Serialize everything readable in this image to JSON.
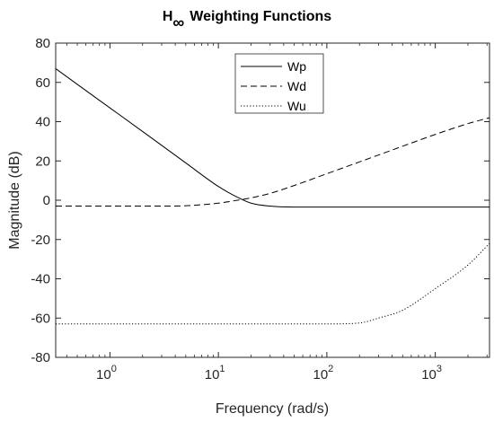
{
  "chart_data": {
    "type": "line",
    "title_main": "H",
    "title_subscript": "∞",
    "title_rest": "Weighting Functions",
    "xlabel": "Frequency (rad/s)",
    "ylabel": "Magnitude (dB)",
    "x_scale": "log",
    "xlim": [
      0.316,
      3162
    ],
    "ylim": [
      -80,
      80
    ],
    "x_ticks": [
      1,
      10,
      100,
      1000
    ],
    "x_tick_labels": [
      {
        "base": "10",
        "exp": "0"
      },
      {
        "base": "10",
        "exp": "1"
      },
      {
        "base": "10",
        "exp": "2"
      },
      {
        "base": "10",
        "exp": "3"
      }
    ],
    "y_ticks": [
      -80,
      -60,
      -40,
      -20,
      0,
      20,
      40,
      60,
      80
    ],
    "y_tick_labels": [
      "-80",
      "-60",
      "-40",
      "-20",
      "0",
      "20",
      "40",
      "60",
      "80"
    ],
    "grid": false,
    "legend_position": "top-center",
    "series": [
      {
        "name": "Wp",
        "style": "solid",
        "color": "#000000",
        "x": [
          0.316,
          0.5,
          1,
          2,
          5,
          10,
          15,
          20,
          30,
          50,
          100,
          1000,
          3162
        ],
        "y": [
          67,
          59,
          47,
          35,
          19,
          7,
          1.5,
          -1.5,
          -3,
          -3.5,
          -3.5,
          -3.5,
          -3.5
        ]
      },
      {
        "name": "Wd",
        "style": "dashed",
        "color": "#000000",
        "x": [
          0.316,
          1,
          3,
          5,
          10,
          15,
          20,
          30,
          50,
          100,
          200,
          500,
          1000,
          2000,
          3162
        ],
        "y": [
          -3,
          -3,
          -3,
          -2.8,
          -1.5,
          0,
          1.2,
          3.5,
          7.5,
          13.5,
          19.5,
          27.5,
          33.5,
          39,
          42
        ]
      },
      {
        "name": "Wu",
        "style": "dotted",
        "color": "#000000",
        "x": [
          0.316,
          10,
          100,
          200,
          300,
          500,
          1000,
          2000,
          3162
        ],
        "y": [
          -63,
          -63,
          -63,
          -62.5,
          -60,
          -56,
          -45,
          -33,
          -22
        ]
      }
    ]
  }
}
